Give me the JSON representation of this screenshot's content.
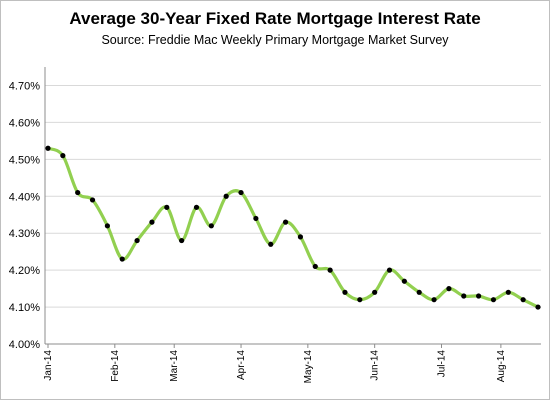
{
  "chart_data": {
    "type": "line",
    "title": "Average 30-Year Fixed Rate Mortgage Interest Rate",
    "subtitle": "Source: Freddie Mac Weekly Primary Mortgage Market Survey",
    "xlabel": "",
    "ylabel": "",
    "ylim": [
      4.0,
      4.75
    ],
    "yticks": [
      "4.00%",
      "4.10%",
      "4.20%",
      "4.30%",
      "4.40%",
      "4.50%",
      "4.60%",
      "4.70%"
    ],
    "xticks": [
      "Jan-14",
      "Feb-14",
      "Mar-14",
      "Apr-14",
      "May-14",
      "Jun-14",
      "Jul-14",
      "Aug-14"
    ],
    "grid": true,
    "line_color": "#92d050",
    "marker_color": "#000000",
    "series": [
      {
        "values": [
          4.53,
          4.51,
          4.41,
          4.39,
          4.32,
          4.23,
          4.28,
          4.33,
          4.37,
          4.28,
          4.37,
          4.32,
          4.4,
          4.41,
          4.34,
          4.27,
          4.33,
          4.29,
          4.21,
          4.2,
          4.14,
          4.12,
          4.14,
          4.2,
          4.17,
          4.14,
          4.12,
          4.15,
          4.13,
          4.13,
          4.12,
          4.14,
          4.12,
          4.1
        ]
      }
    ]
  }
}
